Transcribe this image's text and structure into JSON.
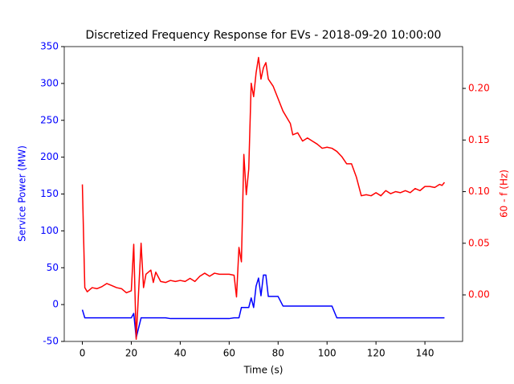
{
  "chart_data": {
    "type": "line",
    "title": "Discretized Frequency Response for EVs - 2018-09-20 10:00:00",
    "xlabel": "Time (s)",
    "ylabel": "Service Power (MW)",
    "y2label": "60 - f (Hz)",
    "x": [
      0,
      1,
      2,
      4,
      6,
      8,
      10,
      12,
      14,
      16,
      18,
      20,
      21,
      22,
      24,
      25,
      26,
      28,
      29,
      30,
      32,
      34,
      36,
      38,
      40,
      42,
      44,
      46,
      48,
      50,
      52,
      54,
      56,
      58,
      60,
      62,
      63,
      64,
      65,
      66,
      67,
      68,
      69,
      70,
      71,
      72,
      73,
      74,
      75,
      76,
      78,
      80,
      82,
      84,
      85,
      86,
      88,
      90,
      92,
      94,
      96,
      98,
      100,
      102,
      104,
      106,
      108,
      110,
      112,
      114,
      116,
      118,
      120,
      122,
      124,
      126,
      128,
      130,
      132,
      134,
      136,
      138,
      140,
      142,
      144,
      146,
      147,
      148
    ],
    "series": [
      {
        "color": "#0000ff",
        "axis": "y",
        "values": [
          -7,
          -18,
          -18,
          -18,
          -18,
          -18,
          -18,
          -18,
          -18,
          -18,
          -18,
          -18,
          -12,
          -45,
          -18,
          -18,
          -18,
          -18,
          -18,
          -18,
          -18,
          -18,
          -19,
          -19,
          -19,
          -19,
          -19,
          -19,
          -19,
          -19,
          -19,
          -19,
          -19,
          -19,
          -19,
          -18,
          -18,
          -18,
          -4,
          -4,
          -4,
          -4,
          9,
          -4,
          25,
          36,
          12,
          40,
          40,
          11,
          11,
          11,
          -2,
          -2,
          -2,
          -2,
          -2,
          -2,
          -2,
          -2,
          -2,
          -2,
          -2,
          -2,
          -18,
          -18,
          -18,
          -18,
          -18,
          -18,
          -18,
          -18,
          -18,
          -18,
          -18,
          -18,
          -18,
          -18,
          -18,
          -18,
          -18,
          -18,
          -18,
          -18,
          -18,
          -18,
          -18,
          -18
        ]
      },
      {
        "color": "#ff0000",
        "axis": "y2",
        "values": [
          0.107,
          0.007,
          0.003,
          0.007,
          0.006,
          0.008,
          0.011,
          0.009,
          0.007,
          0.006,
          0.002,
          0.004,
          0.049,
          -0.043,
          0.05,
          0.007,
          0.02,
          0.024,
          0.012,
          0.022,
          0.013,
          0.012,
          0.014,
          0.013,
          0.014,
          0.013,
          0.016,
          0.013,
          0.018,
          0.021,
          0.018,
          0.021,
          0.02,
          0.02,
          0.02,
          0.019,
          -0.002,
          0.046,
          0.032,
          0.136,
          0.097,
          0.122,
          0.205,
          0.192,
          0.215,
          0.23,
          0.209,
          0.22,
          0.225,
          0.209,
          0.202,
          0.19,
          0.178,
          0.17,
          0.166,
          0.155,
          0.157,
          0.149,
          0.152,
          0.149,
          0.146,
          0.142,
          0.143,
          0.142,
          0.139,
          0.134,
          0.127,
          0.127,
          0.114,
          0.096,
          0.097,
          0.096,
          0.099,
          0.096,
          0.101,
          0.098,
          0.1,
          0.099,
          0.101,
          0.099,
          0.103,
          0.101,
          0.105,
          0.105,
          0.104,
          0.107,
          0.106,
          0.109
        ]
      }
    ],
    "xlim": [
      -7.4,
      155.4
    ],
    "xticks": [
      0,
      20,
      40,
      60,
      80,
      100,
      120,
      140
    ],
    "ylim": [
      -50,
      350
    ],
    "yticks": [
      -50,
      0,
      50,
      100,
      150,
      200,
      250,
      300,
      350
    ],
    "y2lim": [
      -0.0451,
      0.2405
    ],
    "y2ticks": [
      {
        "value": 0,
        "label": "0.00"
      },
      {
        "value": 0.05,
        "label": "0.05"
      },
      {
        "value": 0.1,
        "label": "0.10"
      },
      {
        "value": 0.15,
        "label": "0.15"
      },
      {
        "value": 0.2,
        "label": "0.20"
      }
    ],
    "grid": false
  }
}
